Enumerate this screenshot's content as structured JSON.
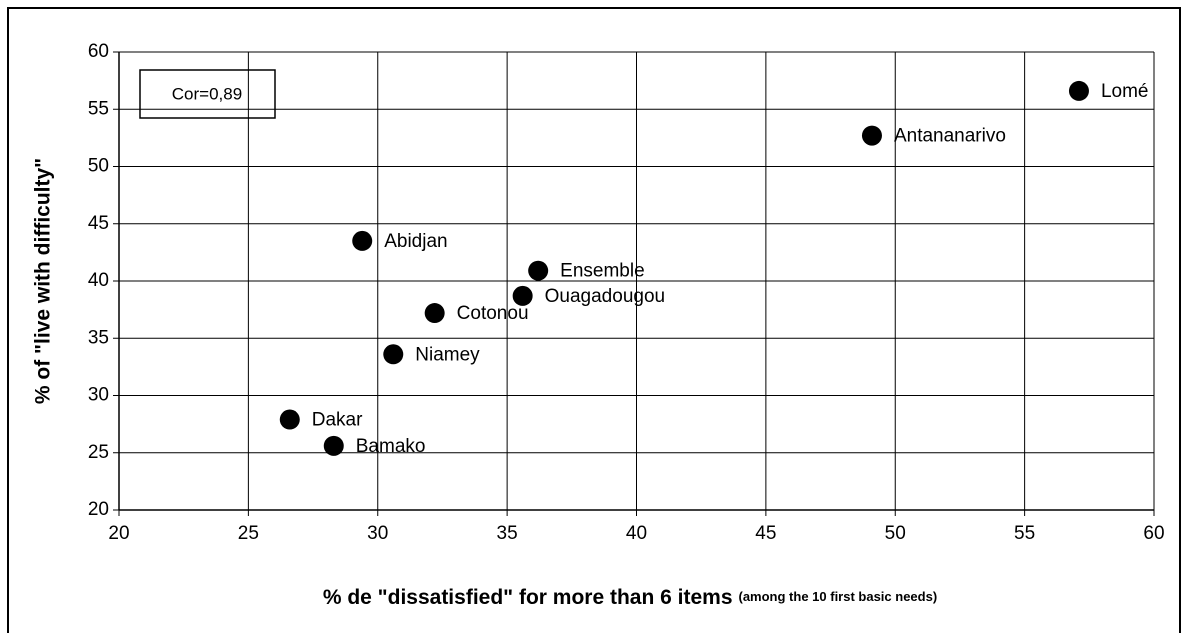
{
  "chart_data": {
    "type": "scatter",
    "annotation": "Cor=0,89",
    "xlabel": "% de \"dissatisfied\" for more than 6 items",
    "xlabel_note": "(among the 10 first basic needs)",
    "ylabel": "% of \"live with difficulty\"",
    "labels": [
      "Lomé",
      "Antananarivo",
      "Abidjan",
      "Ensemble",
      "Ouagadougou",
      "Cotonou",
      "Niamey",
      "Dakar",
      "Bamako"
    ],
    "x": [
      57.1,
      49.1,
      29.4,
      36.2,
      35.6,
      32.2,
      30.6,
      26.6,
      28.3
    ],
    "y": [
      56.6,
      52.7,
      43.5,
      40.9,
      38.7,
      37.2,
      33.6,
      27.9,
      25.6
    ],
    "color": "#000000",
    "xlim": [
      20,
      60
    ],
    "xticks": [
      20,
      25,
      30,
      35,
      40,
      45,
      50,
      55,
      60
    ],
    "ylim": [
      20,
      60
    ],
    "yticks": [
      20,
      25,
      30,
      35,
      40,
      45,
      50,
      55,
      60
    ],
    "grid": true
  }
}
